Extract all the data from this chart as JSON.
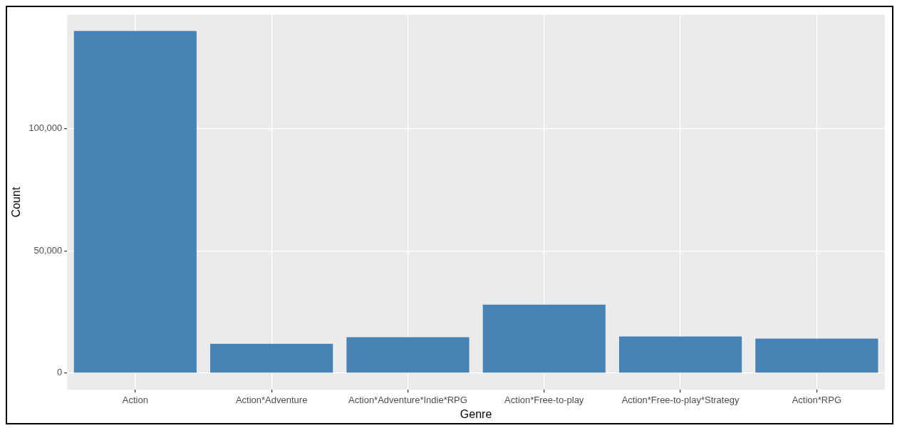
{
  "chart_data": {
    "type": "bar",
    "xlabel": "Genre",
    "ylabel": "Count",
    "categories": [
      "Action",
      "Action*Adventure",
      "Action*Adventure*Indie*RPG",
      "Action*Free-to-play",
      "Action*Free-to-play*Strategy",
      "Action*RPG"
    ],
    "values": [
      140000,
      12000,
      14700,
      28000,
      15000,
      14100
    ],
    "color": "#4682b4",
    "ylim": [
      -6800,
      146600
    ],
    "yticks": [
      {
        "value": 0,
        "label": "0"
      },
      {
        "value": 50000,
        "label": "50,000"
      },
      {
        "value": 100000,
        "label": "100,000"
      }
    ],
    "grid": true
  }
}
